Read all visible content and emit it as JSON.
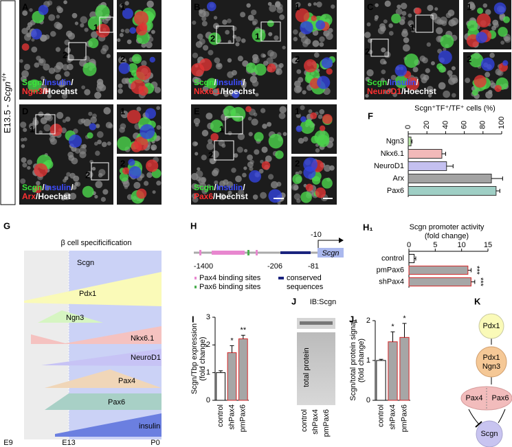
{
  "side_label": {
    "text": "E13.5 - ",
    "gene": "Scgn",
    "genotype": "+/+"
  },
  "panels": [
    {
      "letter": "A",
      "stain": [
        [
          {
            "text": "Scgn",
            "color": "#39e639"
          },
          {
            "text": "/",
            "color": "#ffffff"
          },
          {
            "text": "Insulin",
            "color": "#3d4cff"
          },
          {
            "text": "/",
            "color": "#ffffff"
          }
        ],
        [
          {
            "text": "Ngn3",
            "color": "#ff3030"
          },
          {
            "text": "/Hoechst",
            "color": "#ffffff"
          }
        ]
      ],
      "insets": [
        "1",
        "2"
      ]
    },
    {
      "letter": "B",
      "stain": [
        [
          {
            "text": "Scgn",
            "color": "#39e639"
          },
          {
            "text": "/",
            "color": "#ffffff"
          },
          {
            "text": "Insulin",
            "color": "#3d4cff"
          },
          {
            "text": "/",
            "color": "#ffffff"
          }
        ],
        [
          {
            "text": "Nkx6.1",
            "color": "#ff3030"
          },
          {
            "text": "/Hoechst",
            "color": "#ffffff"
          }
        ]
      ],
      "insets": [
        "1",
        "2"
      ]
    },
    {
      "letter": "C",
      "stain": [
        [
          {
            "text": "Scgn",
            "color": "#39e639"
          },
          {
            "text": "/",
            "color": "#ffffff"
          },
          {
            "text": "Insulin",
            "color": "#3d4cff"
          },
          {
            "text": "/",
            "color": "#ffffff"
          }
        ],
        [
          {
            "text": "NeuroD1",
            "color": "#ff3030"
          },
          {
            "text": "/Hoechst",
            "color": "#ffffff"
          }
        ]
      ],
      "insets": [
        "1",
        "2"
      ]
    },
    {
      "letter": "D",
      "stain": [
        [
          {
            "text": "Scgn",
            "color": "#39e639"
          },
          {
            "text": "/",
            "color": "#ffffff"
          },
          {
            "text": "Insulin",
            "color": "#3d4cff"
          },
          {
            "text": "/",
            "color": "#ffffff"
          }
        ],
        [
          {
            "text": "Arx",
            "color": "#ff3030"
          },
          {
            "text": "/Hoechst",
            "color": "#ffffff"
          }
        ]
      ],
      "insets": [
        "1",
        "2"
      ]
    },
    {
      "letter": "E",
      "stain": [
        [
          {
            "text": "Scgn",
            "color": "#39e639"
          },
          {
            "text": "/",
            "color": "#ffffff"
          },
          {
            "text": "Insulin",
            "color": "#3d4cff"
          },
          {
            "text": "/",
            "color": "#ffffff"
          }
        ],
        [
          {
            "text": "Pax6",
            "color": "#ff3030"
          },
          {
            "text": "/Hoechst",
            "color": "#ffffff"
          }
        ]
      ],
      "insets": [
        "1",
        "2"
      ]
    }
  ],
  "chart_data": [
    {
      "type": "bar",
      "orientation": "horizontal",
      "panel": "F",
      "title": [
        "Scgn⁺TF⁺/TF⁺ cells (%)"
      ],
      "categories": [
        "Ngn3",
        "Nkx6.1",
        "NeuroD1",
        "Arx",
        "Pax6"
      ],
      "values": [
        3,
        36,
        41,
        89,
        94
      ],
      "errors": [
        1,
        4,
        7,
        12,
        4
      ],
      "colors": [
        "#b6e6a2",
        "#f2b9b9",
        "#c4c0f0",
        "#a3a3a3",
        "#9fcfc5"
      ],
      "edge_colors": [
        "#333333",
        "#333333",
        "#333333",
        "#333333",
        "#333333"
      ],
      "xlim": [
        0,
        100
      ],
      "xticks": [
        0,
        20,
        40,
        60,
        80,
        100
      ],
      "tick_rotation": -90
    },
    {
      "type": "bar",
      "orientation": "horizontal",
      "panel": "H₁",
      "title": [
        "Scgn promoter activity",
        "(fold change)"
      ],
      "categories": [
        "control",
        "pmPax6",
        "shPax4"
      ],
      "values": [
        1,
        11.2,
        11.8
      ],
      "errors": [
        0.3,
        0.6,
        0.7
      ],
      "significance": [
        null,
        "***",
        "***"
      ],
      "colors": [
        "#ffffff",
        "#a6a6a6",
        "#a6a6a6"
      ],
      "edge_colors": [
        "#000000",
        "#d62728",
        "#d62728"
      ],
      "xlim": [
        0,
        15
      ],
      "xticks": [
        0,
        5,
        10,
        15
      ],
      "tick_rotation": 0
    },
    {
      "type": "bar",
      "orientation": "vertical",
      "panel": "I",
      "ylabel": [
        "Scgn/Tbp expression",
        "(fold change)"
      ],
      "categories": [
        "control",
        "shPax4",
        "pmPax6"
      ],
      "values": [
        1,
        1.72,
        2.22
      ],
      "errors": [
        0.07,
        0.25,
        0.13
      ],
      "significance": [
        null,
        "*",
        "**"
      ],
      "colors": [
        "#ffffff",
        "#a6a6a6",
        "#a6a6a6"
      ],
      "edge_colors": [
        "#000000",
        "#d62728",
        "#d62728"
      ],
      "ylim": [
        0,
        3
      ],
      "yticks": [
        0,
        1,
        2,
        3
      ]
    },
    {
      "type": "bar",
      "orientation": "vertical",
      "panel": "J₁",
      "ylabel": [
        "Scgn/total protein signal",
        "(fold change)"
      ],
      "categories": [
        "control",
        "shPax4",
        "pmPax6"
      ],
      "values": [
        1,
        1.47,
        1.58
      ],
      "errors": [
        0.03,
        0.25,
        0.35
      ],
      "significance": [
        null,
        "*",
        "*"
      ],
      "colors": [
        "#ffffff",
        "#a6a6a6",
        "#a6a6a6"
      ],
      "edge_colors": [
        "#000000",
        "#d62728",
        "#d62728"
      ],
      "ylim": [
        0,
        2
      ],
      "yticks": [
        0,
        1,
        2
      ]
    }
  ],
  "panel_g": {
    "letter": "G",
    "title": "β cell specificification",
    "genes": [
      "Scgn",
      "Pdx1",
      "Ngn3",
      "Nkx6.1",
      "NeuroD1",
      "Pax4",
      "Pax6",
      "insulin"
    ],
    "stages": [
      "E9",
      "E13",
      "P0"
    ]
  },
  "panel_h": {
    "letter": "H",
    "gene": "Scgn",
    "start": "-10",
    "positions": [
      "-1400",
      "-206",
      "-81"
    ],
    "legend": [
      {
        "label": [
          "Pax4 binding sites"
        ],
        "color": "#e887cf"
      },
      {
        "label": [
          "Pax6 binding sites"
        ],
        "color": "#4caf50"
      },
      {
        "label": [
          "conserved",
          "sequences"
        ],
        "color": "#1a237e"
      }
    ]
  },
  "panel_j": {
    "letter": "J",
    "antibody": "IB:Scgn",
    "loading": "total protein",
    "categories": [
      "control",
      "shPax4",
      "pmPax6"
    ]
  },
  "panel_k": {
    "letter": "K",
    "nodes": [
      "Pdx1",
      "Pdx1",
      "Ngn3",
      "Pax4",
      "Pax6",
      "Scgn"
    ]
  }
}
